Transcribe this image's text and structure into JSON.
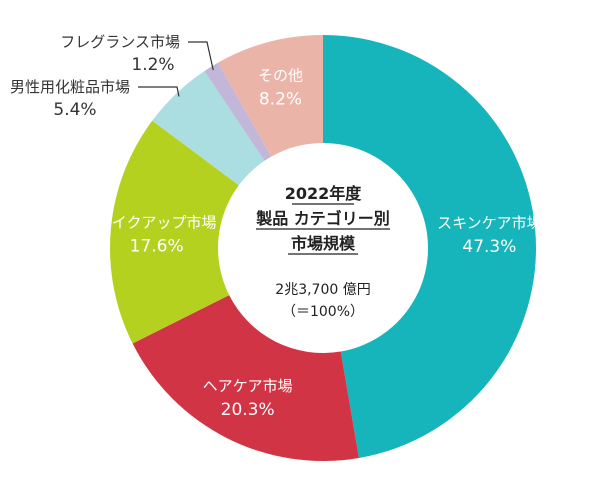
{
  "chart_data": {
    "type": "pie",
    "variant": "donut",
    "center": {
      "title_lines": [
        "2022年度",
        "製品 カテゴリー別",
        "市場規模"
      ],
      "total": "2兆3,700 億円",
      "total_note": "（＝100%）"
    },
    "slices": [
      {
        "name": "スキンケア市場",
        "value": 47.3,
        "value_label": "47.3%",
        "color": "#16b5bb",
        "label_placement": "inside"
      },
      {
        "name": "ヘアケア市場",
        "value": 20.3,
        "value_label": "20.3%",
        "color": "#d13444",
        "label_placement": "inside"
      },
      {
        "name": "メイクアップ市場",
        "value": 17.6,
        "value_label": "17.6%",
        "color": "#b5d120",
        "label_placement": "inside"
      },
      {
        "name": "男性用化粧品市場",
        "value": 5.4,
        "value_label": "5.4%",
        "color": "#abdee1",
        "label_placement": "outside"
      },
      {
        "name": "フレグランス市場",
        "value": 1.2,
        "value_label": "1.2%",
        "color": "#c2b6d9",
        "label_placement": "outside"
      },
      {
        "name": "その他",
        "value": 8.2,
        "value_label": "8.2%",
        "color": "#ebb4a8",
        "label_placement": "inside"
      }
    ]
  }
}
